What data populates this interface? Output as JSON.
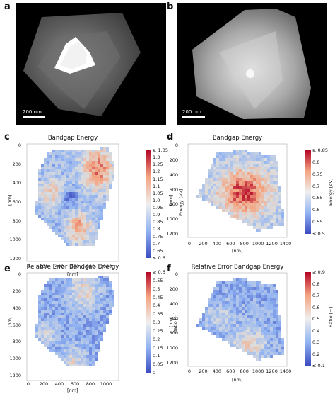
{
  "panels": {
    "a": {
      "letter": "a",
      "scale_bar": "200 nm"
    },
    "b": {
      "letter": "b",
      "scale_bar": "200 nm"
    },
    "c": {
      "letter": "c",
      "title": "Bandgap Energy",
      "xlabel": "[nm]",
      "ylabel": "[nm]",
      "x_ticks": [
        "0",
        "200",
        "400",
        "600",
        "800",
        "1000"
      ],
      "y_ticks": [
        "0",
        "200",
        "400",
        "600",
        "800",
        "1000",
        "1200"
      ],
      "colorbar_label": "Energy [eV]",
      "colorbar_ticks": [
        "≥ 1.35",
        "1.3",
        "1.25",
        "1.2",
        "1.15",
        "1.1",
        "1.05",
        "1.0",
        "0.95",
        "0.9",
        "0.85",
        "0.8",
        "0.75",
        "0.7",
        "0.65",
        "≤ 0.6"
      ]
    },
    "d": {
      "letter": "d",
      "title": "Bandgap Energy",
      "xlabel": "[nm]",
      "ylabel": "[nm]",
      "x_ticks": [
        "0",
        "200",
        "400",
        "600",
        "800",
        "1000",
        "1200",
        "1400"
      ],
      "y_ticks": [
        "0",
        "200",
        "400",
        "600",
        "800",
        "1000",
        "1200"
      ],
      "colorbar_label": "Energy [eV]",
      "colorbar_ticks": [
        "≥ 0.85",
        "0.8",
        "0.75",
        "0.7",
        "0.65",
        "0.6",
        "0.55",
        "≤ 0.5"
      ]
    },
    "e": {
      "letter": "e",
      "title": "Relative Error Bandgap Energy",
      "xlabel": "[nm]",
      "ylabel": "[nm]",
      "x_ticks": [
        "0",
        "200",
        "400",
        "600",
        "800",
        "1000"
      ],
      "y_ticks": [
        "0",
        "200",
        "400",
        "600",
        "800",
        "1000",
        "1200"
      ],
      "colorbar_label": "Ratio [−]",
      "colorbar_ticks": [
        "≥ 0.6",
        "0.55",
        "0.5",
        "0.45",
        "0.4",
        "0.35",
        "0.3",
        "0.25",
        "0.2",
        "0.15",
        "0.1",
        "0.05",
        "0"
      ]
    },
    "f": {
      "letter": "f",
      "title": "Relative Error Bandgap Energy",
      "xlabel": "[nm]",
      "ylabel": "[nm]",
      "x_ticks": [
        "0",
        "200",
        "400",
        "600",
        "800",
        "1000",
        "1200",
        "1400"
      ],
      "y_ticks": [
        "0",
        "200",
        "400",
        "600",
        "800",
        "1000",
        "1200"
      ],
      "colorbar_label": "Ratio [−]",
      "colorbar_ticks": [
        "≥ 0.9",
        "0.8",
        "0.7",
        "0.6",
        "0.5",
        "0.4",
        "0.3",
        "0.2",
        "≤ 0.1"
      ]
    }
  },
  "colors": {
    "cool": "#3b4cc0",
    "neutral": "#dddddd",
    "warm": "#b40426"
  }
}
